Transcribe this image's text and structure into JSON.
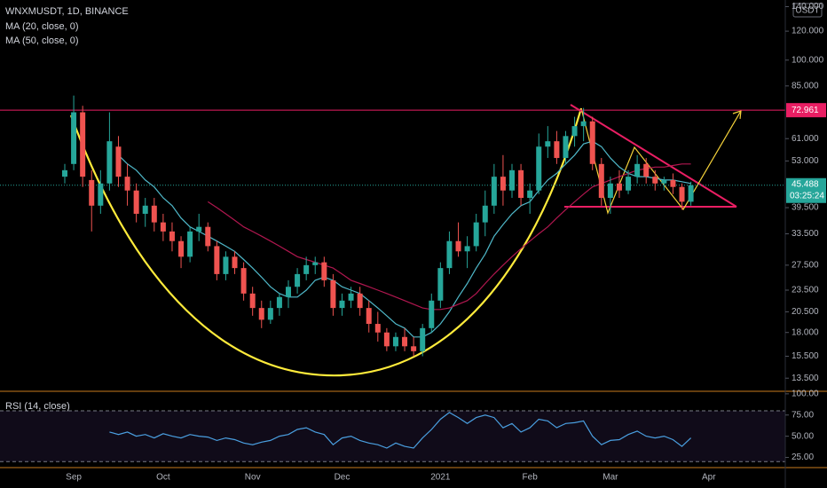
{
  "chart_data": [
    {
      "type": "candlestick",
      "title": "WNXMUSDT, 1D, BINANCE",
      "currency": "USDT",
      "categories": [
        null,
        "Sep",
        null,
        null,
        null,
        null,
        null,
        null,
        null,
        null,
        null,
        "Oct",
        null,
        null,
        null,
        null,
        null,
        null,
        null,
        null,
        null,
        "Nov",
        null,
        null,
        null,
        null,
        null,
        null,
        null,
        null,
        null,
        "Dec",
        null,
        null,
        null,
        null,
        null,
        null,
        null,
        null,
        null,
        null,
        "2021",
        null,
        null,
        null,
        null,
        null,
        null,
        null,
        null,
        null,
        "Feb",
        null,
        null,
        null,
        null,
        null,
        null,
        null,
        null,
        "Mar",
        null,
        null,
        null,
        null,
        null,
        null,
        null,
        null,
        null,
        null,
        "Apr",
        null,
        null,
        null,
        null,
        null,
        null,
        null,
        null
      ],
      "open": [
        48,
        52,
        72,
        47,
        40,
        46,
        58,
        48,
        44,
        38,
        40,
        36,
        34,
        32,
        29,
        34,
        35,
        31,
        26,
        29,
        27,
        23,
        21,
        19.5,
        21,
        22.5,
        24,
        26,
        27.5,
        28,
        25,
        21,
        22,
        23,
        21,
        19,
        18,
        16.5,
        17.5,
        16.5,
        16,
        18.5,
        22,
        27,
        32,
        30,
        31,
        36,
        40,
        48,
        44,
        50,
        42,
        44,
        58,
        60,
        54,
        62,
        66,
        68,
        52,
        42,
        46,
        44,
        48,
        52,
        48,
        46,
        47,
        45,
        41,
        null,
        null,
        null,
        null,
        null,
        null,
        null,
        null,
        null,
        null
      ],
      "high": [
        52,
        80,
        75,
        50,
        50,
        72,
        62,
        52,
        46,
        42,
        42,
        38,
        36,
        33,
        35,
        38,
        36,
        32,
        30,
        30,
        28,
        24,
        22,
        22,
        23,
        25,
        27,
        29,
        29,
        29,
        26,
        23,
        24,
        24,
        22,
        20.5,
        18.5,
        18,
        18.5,
        17.5,
        19,
        23,
        28,
        34,
        36,
        33,
        38,
        44,
        52,
        55,
        52,
        52,
        46,
        63,
        66,
        64,
        64,
        70,
        74,
        70,
        54,
        48,
        50,
        50,
        55,
        54,
        50,
        48,
        49,
        46,
        46.5,
        null,
        null,
        null,
        null,
        null,
        null,
        null,
        null,
        null,
        null
      ],
      "low": [
        46,
        50,
        45,
        34,
        38,
        44,
        45,
        40,
        36,
        35,
        34,
        32,
        30,
        27,
        28,
        32,
        30,
        25,
        25,
        26,
        22,
        20,
        18.5,
        19,
        20,
        21,
        23,
        25,
        26,
        24,
        20,
        20,
        21,
        20,
        18,
        17,
        16,
        16,
        16,
        15.5,
        15.5,
        18,
        21,
        26,
        29,
        27,
        30,
        33,
        38,
        40,
        42,
        40,
        38,
        43,
        54,
        52,
        52,
        58,
        60,
        50,
        40,
        38,
        42,
        43,
        46,
        46,
        44,
        44,
        43,
        39,
        40,
        null,
        null,
        null,
        null,
        null,
        null,
        null,
        null,
        null,
        null
      ],
      "close": [
        50,
        72,
        48,
        40,
        46,
        60,
        48,
        44,
        38,
        40,
        36,
        34,
        32,
        29,
        34,
        35,
        31,
        26,
        29,
        27,
        23,
        21,
        19.5,
        21,
        22.5,
        24,
        26,
        27.5,
        28,
        25,
        21,
        22,
        23,
        21,
        19,
        18,
        16.5,
        17.5,
        16.5,
        16,
        18.5,
        22,
        27,
        32,
        30,
        31,
        36,
        40,
        48,
        44,
        50,
        42,
        44,
        58,
        60,
        54,
        62,
        66,
        68,
        52,
        42,
        46,
        44,
        48,
        52,
        48,
        46,
        47,
        45,
        41,
        45.488,
        null,
        null,
        null,
        null,
        null,
        null,
        null,
        null,
        null,
        null
      ],
      "up_color": "#26a69a",
      "down_color": "#ef5350",
      "series": [
        {
          "name": "MA (20, close, 0)",
          "color": "#4fb8c9",
          "values": [
            null,
            null,
            null,
            null,
            null,
            null,
            55,
            52,
            50,
            47,
            45,
            42,
            40,
            37,
            35,
            34,
            33,
            32,
            31,
            30,
            28.5,
            27,
            25.5,
            24,
            23,
            22.5,
            22.5,
            23.5,
            25,
            25.5,
            25,
            24,
            23.5,
            23,
            22,
            21,
            20,
            19,
            18.5,
            17.5,
            17.5,
            18,
            19,
            20.5,
            22.5,
            24.5,
            27,
            29.5,
            33,
            35.5,
            38,
            40,
            41,
            44,
            47,
            49,
            52,
            55,
            59,
            60,
            58,
            54,
            51,
            49,
            48,
            48,
            47.5,
            47,
            47,
            46.5,
            46,
            null,
            null,
            null,
            null,
            null,
            null,
            null,
            null,
            null,
            null
          ]
        },
        {
          "name": "MA (50, close, 0)",
          "color": "#b0174f",
          "values": [
            null,
            null,
            null,
            null,
            null,
            null,
            null,
            null,
            null,
            null,
            null,
            null,
            null,
            null,
            null,
            null,
            41,
            39.5,
            38,
            36.5,
            35,
            34,
            33,
            32,
            31,
            30,
            29,
            28.5,
            28,
            27.5,
            27,
            26,
            25,
            24.5,
            24,
            23.5,
            23,
            22.5,
            22,
            21.5,
            21,
            20.8,
            20.8,
            21,
            21.5,
            22,
            23,
            24.5,
            26,
            27.5,
            29,
            30.5,
            32,
            33.5,
            35,
            37,
            39,
            41,
            43,
            45,
            46,
            47,
            48,
            49,
            50,
            50.5,
            51,
            51,
            51.5,
            52,
            52,
            null,
            null,
            null,
            null,
            null,
            null,
            null,
            null,
            null,
            null
          ]
        }
      ],
      "log_scale": true,
      "ylim": [
        12.5,
        146
      ],
      "yticks": [
        {
          "value": 140,
          "label": "140.000"
        },
        {
          "value": 120,
          "label": "120.000"
        },
        {
          "value": 100,
          "label": "100.000"
        },
        {
          "value": 85,
          "label": "85.000"
        },
        {
          "value": 61,
          "label": "61.000"
        },
        {
          "value": 53,
          "label": "53.000"
        },
        {
          "value": 39.5,
          "label": "39.500"
        },
        {
          "value": 33.5,
          "label": "33.500"
        },
        {
          "value": 27.5,
          "label": "27.500"
        },
        {
          "value": 23.5,
          "label": "23.500"
        },
        {
          "value": 20.5,
          "label": "20.500"
        },
        {
          "value": 18,
          "label": "18.000"
        },
        {
          "value": 15.5,
          "label": "15.500"
        },
        {
          "value": 13.5,
          "label": "13.500"
        }
      ],
      "level": 72.961,
      "level_color": "#e91e63",
      "last_price": 45.488,
      "countdown": "03:25:24"
    },
    {
      "type": "line",
      "series": [
        {
          "name": "RSI (14, close)",
          "color": "#4a9fe0",
          "values": [
            null,
            null,
            null,
            null,
            null,
            55,
            52,
            55,
            50,
            52,
            48,
            53,
            50,
            48,
            52,
            50,
            49,
            45,
            48,
            46,
            42,
            40,
            43,
            45,
            50,
            52,
            58,
            60,
            55,
            52,
            40,
            48,
            50,
            45,
            42,
            40,
            36,
            42,
            38,
            36,
            48,
            58,
            70,
            78,
            72,
            65,
            72,
            75,
            72,
            60,
            65,
            55,
            60,
            70,
            68,
            60,
            65,
            66,
            68,
            50,
            40,
            45,
            46,
            52,
            56,
            50,
            48,
            50,
            46,
            38,
            48,
            null,
            null,
            null,
            null,
            null,
            null,
            null,
            null,
            null,
            null
          ]
        }
      ],
      "ylim": [
        13,
        103
      ],
      "yticks": [
        {
          "value": 100,
          "label": "100.00"
        },
        {
          "value": 75,
          "label": "75.00"
        },
        {
          "value": 50,
          "label": "50.00"
        },
        {
          "value": 25,
          "label": "25.00"
        }
      ],
      "bands": [
        80,
        20
      ]
    }
  ]
}
